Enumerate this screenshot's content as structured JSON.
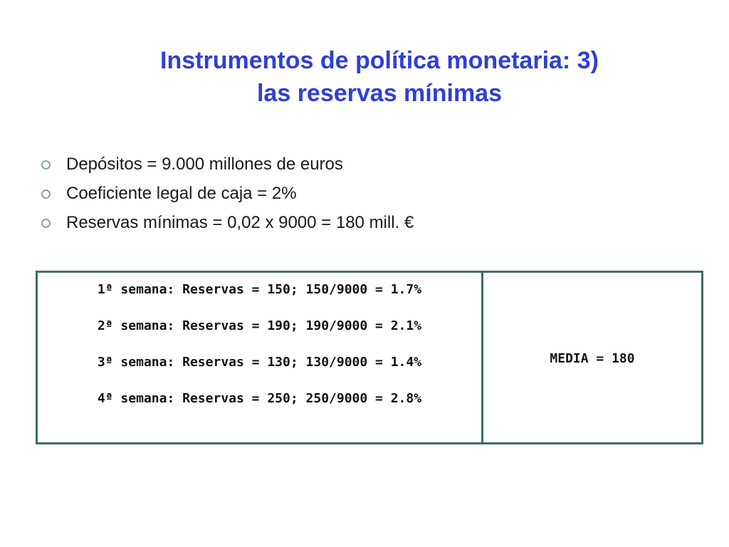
{
  "title": {
    "line1": "Instrumentos de política monetaria: 3)",
    "line2": "las reservas mínimas"
  },
  "bullets": [
    {
      "text": "Depósitos = 9.000 millones de euros",
      "icon": "ring-bullet-icon"
    },
    {
      "text": "Coeficiente legal de caja = 2%",
      "icon": "ring-bullet-icon"
    },
    {
      "text": "Reservas mínimas = 0,02 x 9000 = 180 mill. €",
      "icon": "ring-bullet-icon"
    }
  ],
  "table": {
    "weeks": [
      "1ª semana: Reservas = 150; 150/9000 = 1.7%",
      "2ª semana: Reservas = 190; 190/9000 = 2.1%",
      "3ª semana: Reservas = 130; 130/9000 = 1.4%",
      "4ª semana: Reservas = 250; 250/9000 = 2.8%"
    ],
    "summary": "MEDIA = 180"
  },
  "colors": {
    "title": "#2f3fd6",
    "table_border": "#3f6b6b",
    "bullet_ring": "#8aa0ae",
    "text": "#1a1a1a"
  }
}
